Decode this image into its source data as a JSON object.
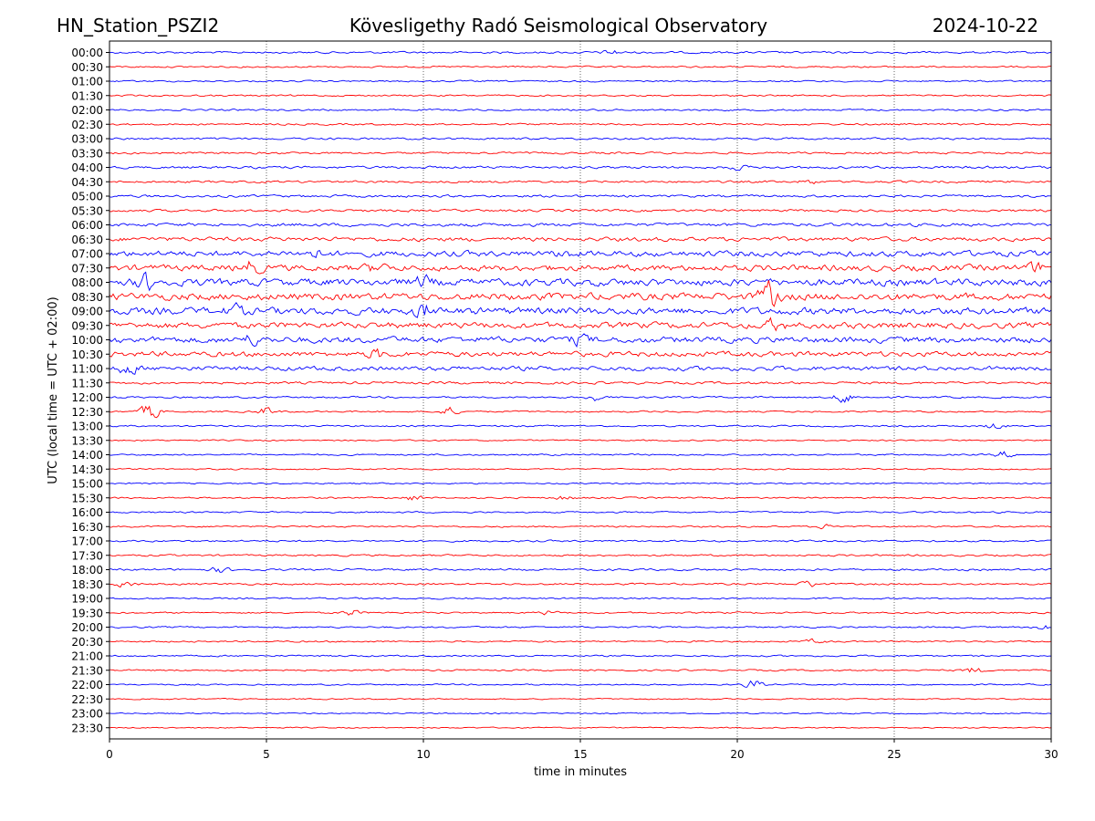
{
  "chart_data": {
    "type": "line",
    "title_left": "HN_Station_PSZI2",
    "title_center": "Kövesligethy Radó Seismological Observatory",
    "title_right": "2024-10-22",
    "xlabel": "time in minutes",
    "ylabel": "UTC (local time = UTC + 02:00)",
    "xlim": [
      0,
      30
    ],
    "x_ticks": [
      0,
      5,
      10,
      15,
      20,
      25,
      30
    ],
    "x_tick_labels": [
      "0",
      "5",
      "10",
      "15",
      "20",
      "25",
      "30"
    ],
    "grid": "vertical dotted at x ticks",
    "trace_colors": [
      "#0000ff",
      "#ff0000"
    ],
    "traces": [
      {
        "label": "00:00",
        "noise": 1.0,
        "events": [
          [
            16.0,
            2.5
          ]
        ]
      },
      {
        "label": "00:30",
        "noise": 0.8,
        "events": []
      },
      {
        "label": "01:00",
        "noise": 0.8,
        "events": []
      },
      {
        "label": "01:30",
        "noise": 0.8,
        "events": []
      },
      {
        "label": "02:00",
        "noise": 0.9,
        "events": []
      },
      {
        "label": "02:30",
        "noise": 0.9,
        "events": []
      },
      {
        "label": "03:00",
        "noise": 1.0,
        "events": []
      },
      {
        "label": "03:30",
        "noise": 1.0,
        "events": []
      },
      {
        "label": "04:00",
        "noise": 1.2,
        "events": [
          [
            20.0,
            2.0
          ]
        ]
      },
      {
        "label": "04:30",
        "noise": 1.1,
        "events": [
          [
            22.3,
            2.0
          ]
        ]
      },
      {
        "label": "05:00",
        "noise": 1.2,
        "events": []
      },
      {
        "label": "05:30",
        "noise": 1.2,
        "events": []
      },
      {
        "label": "06:00",
        "noise": 1.6,
        "events": []
      },
      {
        "label": "06:30",
        "noise": 2.0,
        "events": []
      },
      {
        "label": "07:00",
        "noise": 2.8,
        "events": [
          [
            6.5,
            3.5
          ],
          [
            14.5,
            3.0
          ]
        ]
      },
      {
        "label": "07:30",
        "noise": 3.0,
        "events": [
          [
            4.5,
            6.0
          ],
          [
            8.5,
            4.0
          ],
          [
            29.5,
            4.0
          ]
        ]
      },
      {
        "label": "08:00",
        "noise": 3.5,
        "events": [
          [
            1.2,
            7.0
          ],
          [
            10.0,
            4.5
          ]
        ]
      },
      {
        "label": "08:30",
        "noise": 3.5,
        "events": [
          [
            21.0,
            12.0
          ]
        ]
      },
      {
        "label": "09:00",
        "noise": 3.5,
        "events": [
          [
            4.0,
            4.0
          ],
          [
            10.0,
            6.0
          ]
        ]
      },
      {
        "label": "09:30",
        "noise": 3.0,
        "events": [
          [
            21.2,
            5.0
          ]
        ]
      },
      {
        "label": "10:00",
        "noise": 3.0,
        "events": [
          [
            4.5,
            4.0
          ],
          [
            15.0,
            4.0
          ]
        ]
      },
      {
        "label": "10:30",
        "noise": 2.5,
        "events": [
          [
            8.5,
            4.0
          ]
        ]
      },
      {
        "label": "11:00",
        "noise": 2.2,
        "events": [
          [
            0.6,
            5.0
          ]
        ]
      },
      {
        "label": "11:30",
        "noise": 1.2,
        "events": []
      },
      {
        "label": "12:00",
        "noise": 0.9,
        "events": [
          [
            15.5,
            3.0
          ],
          [
            23.4,
            6.0
          ]
        ]
      },
      {
        "label": "12:30",
        "noise": 0.8,
        "events": [
          [
            1.3,
            8.0
          ],
          [
            5.0,
            4.0
          ],
          [
            10.8,
            4.0
          ]
        ]
      },
      {
        "label": "13:00",
        "noise": 0.8,
        "events": [
          [
            28.2,
            3.0
          ]
        ]
      },
      {
        "label": "13:30",
        "noise": 0.7,
        "events": []
      },
      {
        "label": "14:00",
        "noise": 0.8,
        "events": [
          [
            28.5,
            3.0
          ]
        ]
      },
      {
        "label": "14:30",
        "noise": 0.7,
        "events": []
      },
      {
        "label": "15:00",
        "noise": 0.7,
        "events": []
      },
      {
        "label": "15:30",
        "noise": 0.8,
        "events": [
          [
            9.7,
            3.0
          ],
          [
            14.5,
            2.0
          ]
        ]
      },
      {
        "label": "16:00",
        "noise": 0.8,
        "events": []
      },
      {
        "label": "16:30",
        "noise": 0.8,
        "events": [
          [
            22.9,
            2.5
          ]
        ]
      },
      {
        "label": "17:00",
        "noise": 0.9,
        "events": []
      },
      {
        "label": "17:30",
        "noise": 0.9,
        "events": []
      },
      {
        "label": "18:00",
        "noise": 1.0,
        "events": [
          [
            3.5,
            2.5
          ]
        ]
      },
      {
        "label": "18:30",
        "noise": 0.9,
        "events": [
          [
            0.5,
            3.0
          ],
          [
            22.3,
            3.0
          ]
        ]
      },
      {
        "label": "19:00",
        "noise": 0.8,
        "events": []
      },
      {
        "label": "19:30",
        "noise": 0.8,
        "events": [
          [
            7.7,
            3.0
          ],
          [
            14.0,
            2.0
          ]
        ]
      },
      {
        "label": "20:00",
        "noise": 0.8,
        "events": [
          [
            29.8,
            2.5
          ]
        ]
      },
      {
        "label": "20:30",
        "noise": 0.8,
        "events": [
          [
            22.5,
            2.0
          ]
        ]
      },
      {
        "label": "21:00",
        "noise": 0.8,
        "events": []
      },
      {
        "label": "21:30",
        "noise": 0.8,
        "events": [
          [
            27.5,
            3.0
          ]
        ]
      },
      {
        "label": "22:00",
        "noise": 0.7,
        "events": [
          [
            20.5,
            4.5
          ]
        ]
      },
      {
        "label": "22:30",
        "noise": 0.6,
        "events": []
      },
      {
        "label": "23:00",
        "noise": 0.6,
        "events": []
      },
      {
        "label": "23:30",
        "noise": 0.6,
        "events": []
      }
    ]
  }
}
